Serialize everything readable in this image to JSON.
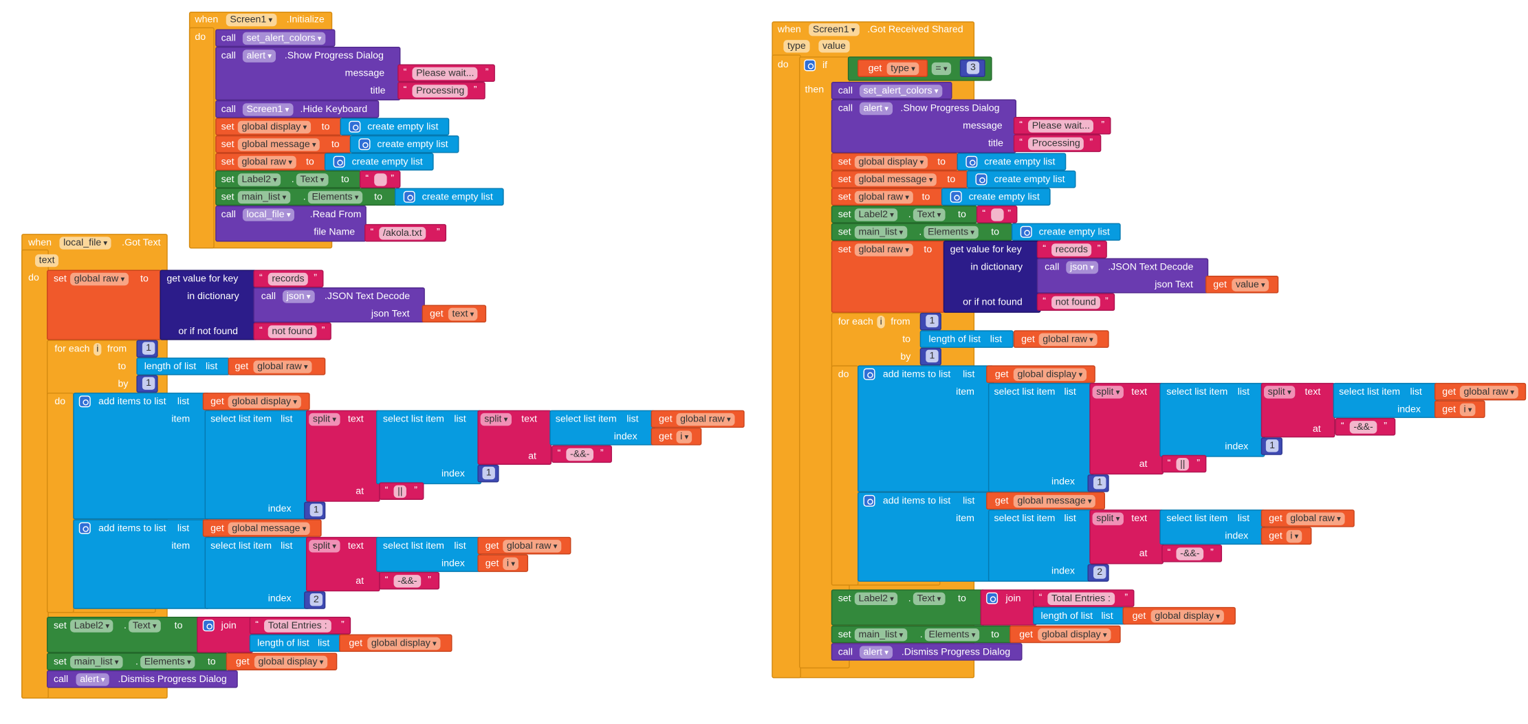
{
  "kw": {
    "when": "when",
    "do": "do",
    "call": "call",
    "set": "set",
    "to": "to",
    "if": "if",
    "then": "then",
    "get": "get",
    "for_each": "for each",
    "from": "from",
    "by": "by",
    "item": "item",
    "index": "index",
    "at": "at",
    "text": "text",
    "list": "list",
    "join": "join",
    "dot": "."
  },
  "labels": {
    "initialize": ".Initialize",
    "got_text": ".Got Text",
    "got_received_shared": ".Got Received Shared",
    "show_progress_dialog": ".Show Progress Dialog",
    "hide_keyboard": ".Hide Keyboard",
    "read_from": ".Read From",
    "json_text_decode": ".JSON Text Decode",
    "dismiss_progress_dialog": ".Dismiss Progress Dialog",
    "message": "message",
    "title": "title",
    "file_name": "file Name",
    "create_empty_list": "create empty list",
    "get_value_for_key": "get value for key",
    "in_dictionary": "in dictionary",
    "json_text": "json Text",
    "or_if_not_found": "or if not found",
    "length_of_list": "length of list",
    "add_items_to_list": "add items to list",
    "select_list_item": "select list item",
    "split": "split",
    "eq": "="
  },
  "components": {
    "screen1": "Screen1",
    "alert": "alert",
    "local_file": "local_file",
    "json": "json",
    "label2": "Label2",
    "main_list": "main_list",
    "text_prop": "Text",
    "elements_prop": "Elements",
    "set_alert_colors": "set_alert_colors"
  },
  "vars": {
    "global_display": "global display",
    "global_message": "global message",
    "global_raw": "global raw",
    "i": "i",
    "text": "text",
    "type": "type",
    "value": "value"
  },
  "strings": {
    "please_wait": "Please wait...",
    "processing": "Processing",
    "empty": "",
    "file_path": "/akola.txt",
    "records": "records",
    "not_found": "not found",
    "sep_amp": "-&&-",
    "sep_pipe": "||",
    "total_entries": "Total Entries : "
  },
  "numbers": {
    "one": "1",
    "two": "2",
    "three": "3"
  },
  "colors": {
    "event": "#f6a623",
    "procedure": "#6a3bb0",
    "variable": "#f0592b",
    "text": "#d81b60",
    "list": "#079be0",
    "component_set": "#33893c",
    "dictionary": "#2c1c8a",
    "math": "#3e4ab3",
    "gear": "#2f6fd6"
  },
  "icons": {
    "mutator": "gear-icon"
  }
}
